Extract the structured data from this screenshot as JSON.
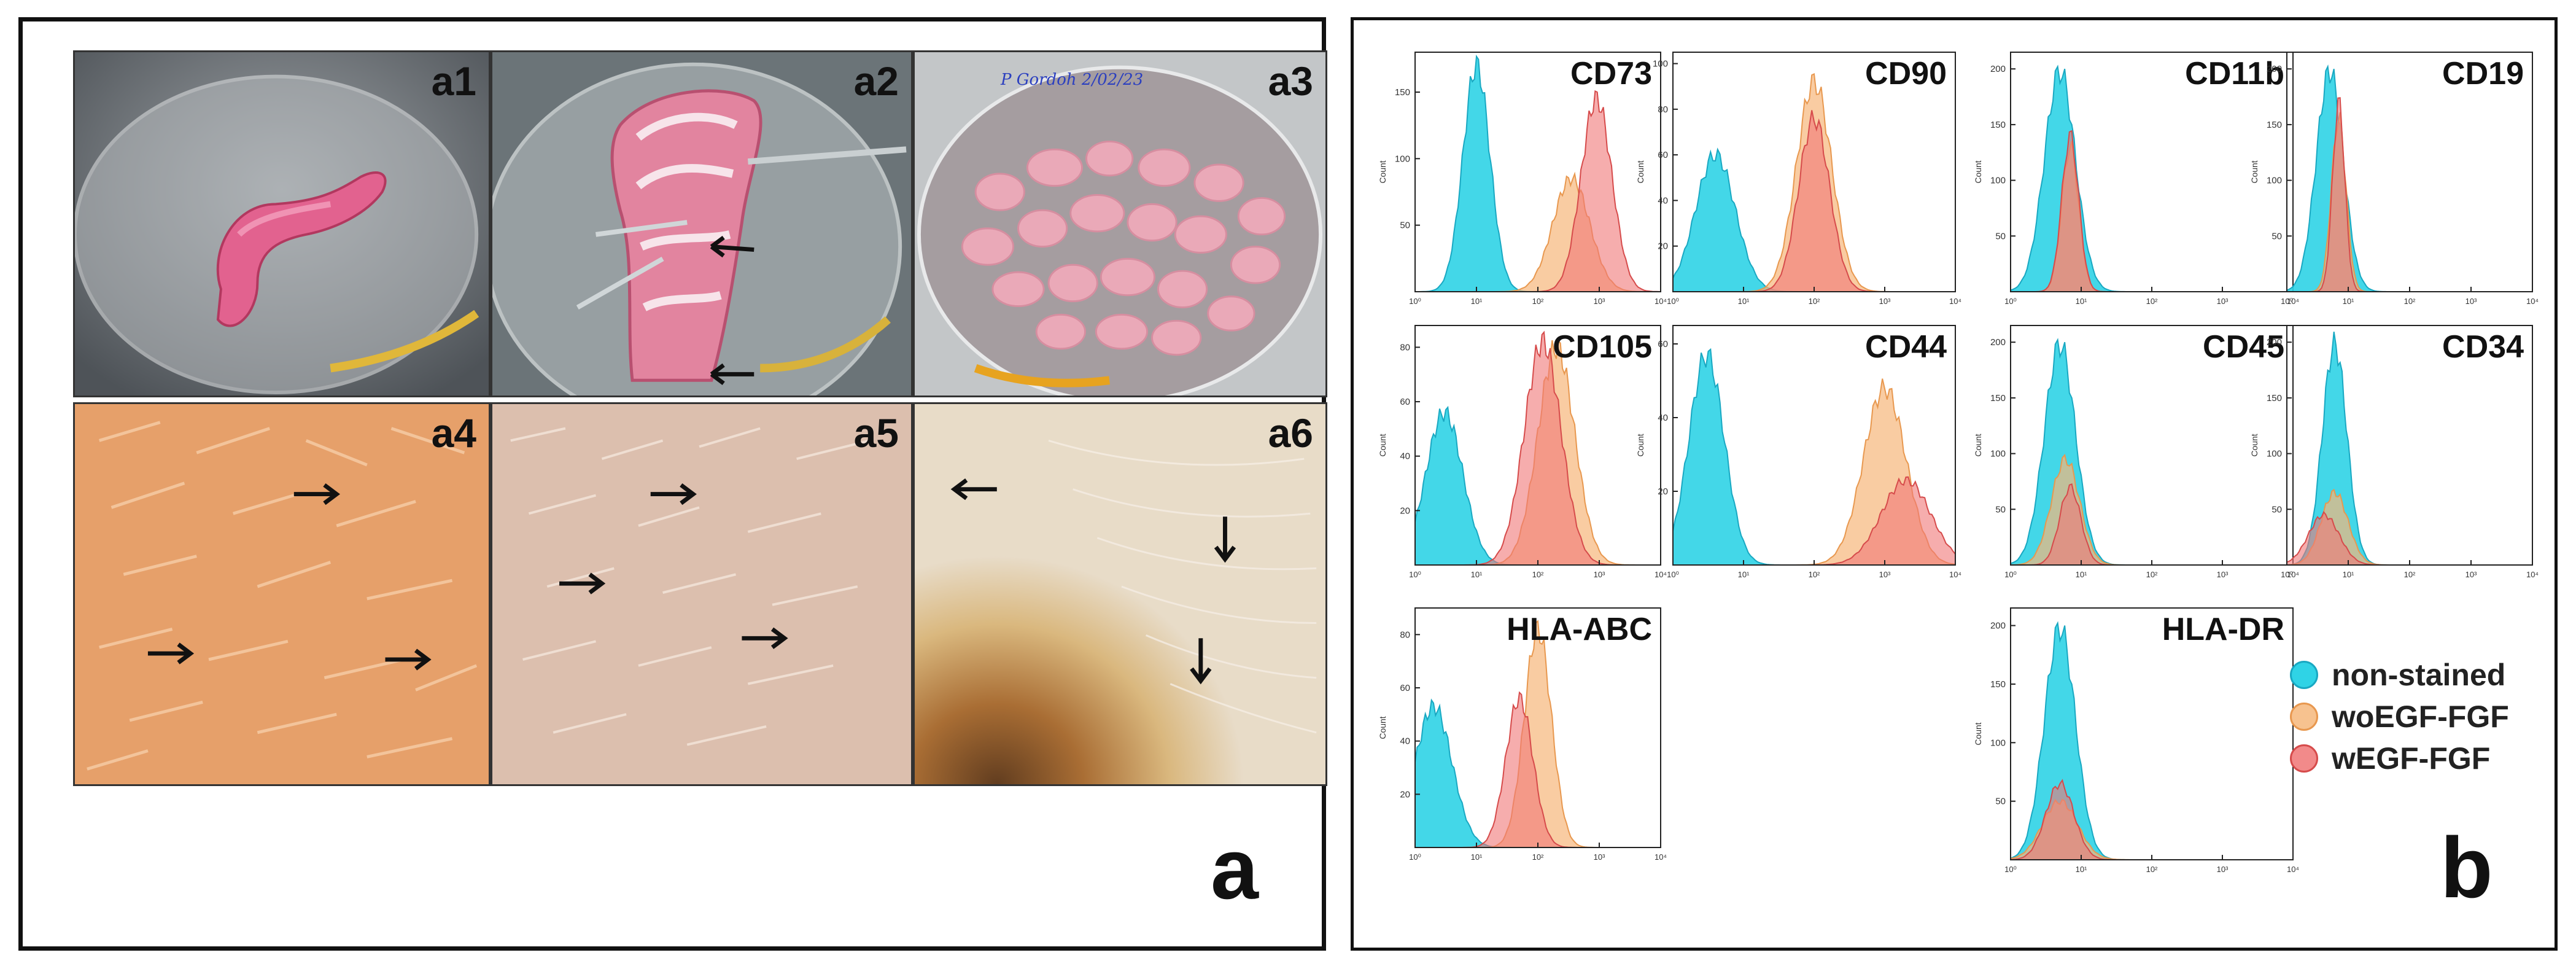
{
  "panel_a": {
    "letter": "a",
    "photos": [
      {
        "id": "a1",
        "label": "a1",
        "kind": "dish-segment"
      },
      {
        "id": "a2",
        "label": "a2",
        "kind": "dish-opened"
      },
      {
        "id": "a3",
        "label": "a3",
        "kind": "dish-fragments",
        "handwriting": "P Gordoh 2/02/23"
      },
      {
        "id": "a4",
        "label": "a4",
        "kind": "cells-orange"
      },
      {
        "id": "a5",
        "label": "a5",
        "kind": "cells-beige"
      },
      {
        "id": "a6",
        "label": "a6",
        "kind": "cells-dark"
      }
    ]
  },
  "panel_b": {
    "letter": "b",
    "legend": [
      {
        "label": "non-stained",
        "color": "#2fd3e6"
      },
      {
        "label": "woEGF-FGF",
        "color": "#f7b77a"
      },
      {
        "label": "wEGF-FGF",
        "color": "#f07777"
      }
    ]
  },
  "chart_data": [
    {
      "type": "area",
      "title": "CD73",
      "ylabel": "Count",
      "xscale": "log",
      "xlim": [
        1,
        10000
      ],
      "yticks": [
        "50",
        "100",
        "150"
      ],
      "ylim": [
        0,
        180
      ],
      "xticks": [
        "10⁰",
        "10¹",
        "10²",
        "10³",
        "10⁴"
      ],
      "series": [
        {
          "peak_x": 10,
          "peak_y": 170,
          "spread": 0.22
        },
        {
          "peak_x": 350,
          "peak_y": 85,
          "spread": 0.3
        },
        {
          "peak_x": 900,
          "peak_y": 145,
          "spread": 0.25
        }
      ]
    },
    {
      "type": "area",
      "title": "CD90",
      "ylabel": "Count",
      "xscale": "log",
      "xlim": [
        1,
        10000
      ],
      "yticks": [
        "20",
        "40",
        "60",
        "80",
        "100"
      ],
      "ylim": [
        0,
        105
      ],
      "xticks": [
        "10⁰",
        "10¹",
        "10²",
        "10³",
        "10⁴"
      ],
      "series": [
        {
          "peak_x": 4,
          "peak_y": 60,
          "spread": 0.28
        },
        {
          "peak_x": 100,
          "peak_y": 92,
          "spread": 0.25
        },
        {
          "peak_x": 100,
          "peak_y": 76,
          "spread": 0.22
        }
      ]
    },
    {
      "type": "area",
      "title": "CD11b",
      "ylabel": "Count",
      "xscale": "log",
      "xlim": [
        1,
        10000
      ],
      "yticks": [
        "50",
        "100",
        "150",
        "200"
      ],
      "ylim": [
        0,
        215
      ],
      "xticks": [
        "10⁰",
        "10¹",
        "10²",
        "10³",
        "10⁴"
      ],
      "series": [
        {
          "peak_x": 5,
          "peak_y": 198,
          "spread": 0.22
        },
        {
          "peak_x": 7,
          "peak_y": 130,
          "spread": 0.12
        },
        {
          "peak_x": 7,
          "peak_y": 140,
          "spread": 0.12
        }
      ]
    },
    {
      "type": "area",
      "title": "CD19",
      "ylabel": "Count",
      "xscale": "log",
      "xlim": [
        1,
        10000
      ],
      "yticks": [
        "50",
        "100",
        "150",
        "200"
      ],
      "ylim": [
        0,
        215
      ],
      "xticks": [
        "10⁰",
        "10¹",
        "10²",
        "10³",
        "10⁴"
      ],
      "series": [
        {
          "peak_x": 5,
          "peak_y": 198,
          "spread": 0.22
        },
        {
          "peak_x": 7,
          "peak_y": 155,
          "spread": 0.12
        },
        {
          "peak_x": 7,
          "peak_y": 170,
          "spread": 0.1
        }
      ]
    },
    {
      "type": "area",
      "title": "CD105",
      "ylabel": "Count",
      "xscale": "log",
      "xlim": [
        1,
        10000
      ],
      "yticks": [
        "20",
        "40",
        "60",
        "80"
      ],
      "ylim": [
        0,
        88
      ],
      "xticks": [
        "10⁰",
        "10¹",
        "10²",
        "10³",
        "10⁴"
      ],
      "series": [
        {
          "peak_x": 3,
          "peak_y": 56,
          "spread": 0.3
        },
        {
          "peak_x": 200,
          "peak_y": 80,
          "spread": 0.3
        },
        {
          "peak_x": 120,
          "peak_y": 82,
          "spread": 0.3
        }
      ]
    },
    {
      "type": "area",
      "title": "CD44",
      "ylabel": "Count",
      "xscale": "log",
      "xlim": [
        1,
        10000
      ],
      "yticks": [
        "20",
        "40",
        "60"
      ],
      "ylim": [
        0,
        65
      ],
      "xticks": [
        "10⁰",
        "10¹",
        "10²",
        "10³",
        "10⁴"
      ],
      "series": [
        {
          "peak_x": 3,
          "peak_y": 57,
          "spread": 0.25
        },
        {
          "peak_x": 1000,
          "peak_y": 48,
          "spread": 0.3
        },
        {
          "peak_x": 2000,
          "peak_y": 23,
          "spread": 0.35
        }
      ]
    },
    {
      "type": "area",
      "title": "CD45",
      "ylabel": "Count",
      "xscale": "log",
      "xlim": [
        1,
        10000
      ],
      "yticks": [
        "50",
        "100",
        "150",
        "200"
      ],
      "ylim": [
        0,
        215
      ],
      "xticks": [
        "10⁰",
        "10¹",
        "10²",
        "10³",
        "10⁴"
      ],
      "series": [
        {
          "peak_x": 5,
          "peak_y": 198,
          "spread": 0.22
        },
        {
          "peak_x": 6,
          "peak_y": 95,
          "spread": 0.2
        },
        {
          "peak_x": 7,
          "peak_y": 70,
          "spread": 0.15
        }
      ]
    },
    {
      "type": "area",
      "title": "CD34",
      "ylabel": "Count",
      "xscale": "log",
      "xlim": [
        1,
        10000
      ],
      "yticks": [
        "50",
        "100",
        "150",
        "200"
      ],
      "ylim": [
        0,
        215
      ],
      "xticks": [
        "10⁰",
        "10¹",
        "10²",
        "10³",
        "10⁴"
      ],
      "series": [
        {
          "peak_x": 6,
          "peak_y": 198,
          "spread": 0.2
        },
        {
          "peak_x": 6,
          "peak_y": 65,
          "spread": 0.22
        },
        {
          "peak_x": 4,
          "peak_y": 45,
          "spread": 0.25
        }
      ]
    },
    {
      "type": "area",
      "title": "HLA-ABC",
      "ylabel": "Count",
      "xscale": "log",
      "xlim": [
        1,
        10000
      ],
      "yticks": [
        "20",
        "40",
        "60",
        "80"
      ],
      "ylim": [
        0,
        90
      ],
      "xticks": [
        "10⁰",
        "10¹",
        "10²",
        "10³",
        "10⁴"
      ],
      "series": [
        {
          "peak_x": 2,
          "peak_y": 53,
          "spread": 0.3
        },
        {
          "peak_x": 100,
          "peak_y": 82,
          "spread": 0.22
        },
        {
          "peak_x": 50,
          "peak_y": 56,
          "spread": 0.22
        }
      ]
    },
    {
      "type": "area",
      "title": "HLA-DR",
      "ylabel": "Count",
      "xscale": "log",
      "xlim": [
        1,
        10000
      ],
      "yticks": [
        "50",
        "100",
        "150",
        "200"
      ],
      "ylim": [
        0,
        215
      ],
      "xticks": [
        "10⁰",
        "10¹",
        "10²",
        "10³",
        "10⁴"
      ],
      "series": [
        {
          "peak_x": 5,
          "peak_y": 198,
          "spread": 0.22
        },
        {
          "peak_x": 5,
          "peak_y": 50,
          "spread": 0.25
        },
        {
          "peak_x": 5,
          "peak_y": 65,
          "spread": 0.2
        }
      ]
    }
  ]
}
